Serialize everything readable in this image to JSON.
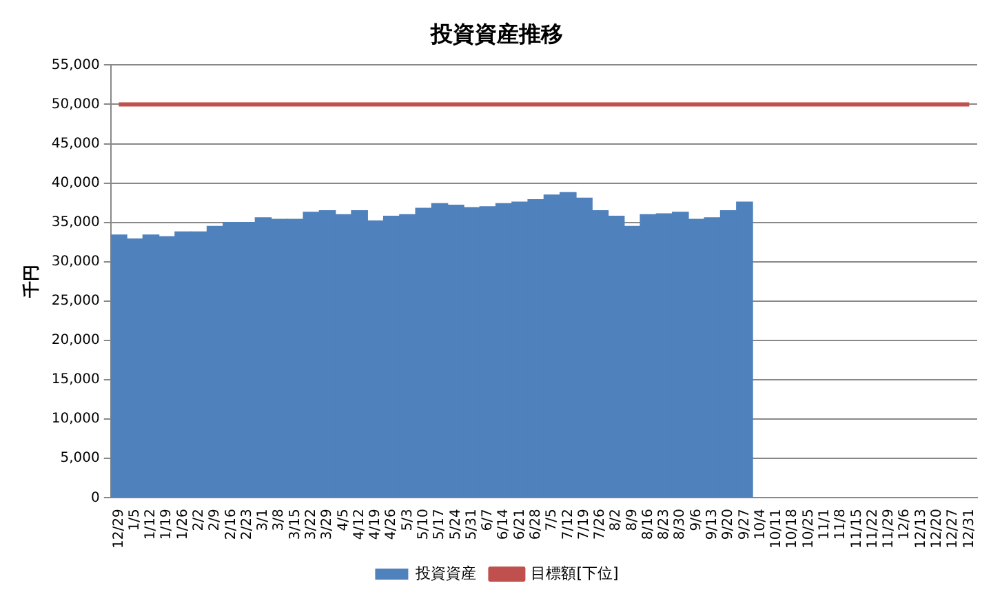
{
  "chart_data": {
    "type": "bar",
    "title": "投資資産推移",
    "ylabel": "千円",
    "categories": [
      "12/29",
      "1/5",
      "1/12",
      "1/19",
      "1/26",
      "2/2",
      "2/9",
      "2/16",
      "2/23",
      "3/1",
      "3/8",
      "3/15",
      "3/22",
      "3/29",
      "4/5",
      "4/12",
      "4/19",
      "4/26",
      "5/3",
      "5/10",
      "5/17",
      "5/24",
      "5/31",
      "6/7",
      "6/14",
      "6/21",
      "6/28",
      "7/5",
      "7/12",
      "7/19",
      "7/26",
      "8/2",
      "8/9",
      "8/16",
      "8/23",
      "8/30",
      "9/6",
      "9/13",
      "9/20",
      "9/27",
      "10/4",
      "10/11",
      "10/18",
      "10/25",
      "11/1",
      "11/8",
      "11/15",
      "11/22",
      "11/29",
      "12/6",
      "12/13",
      "12/20",
      "12/27",
      "12/31"
    ],
    "series": [
      {
        "name": "投資資産",
        "color": "#4f81bd",
        "values": [
          33400,
          32900,
          33400,
          33200,
          33800,
          33800,
          34500,
          35000,
          35000,
          35600,
          35400,
          35400,
          36300,
          36500,
          36000,
          36500,
          35200,
          35800,
          36000,
          36800,
          37400,
          37200,
          36900,
          37000,
          37400,
          37600,
          37900,
          38500,
          38800,
          38100,
          36500,
          35800,
          34500,
          36000,
          36100,
          36300,
          35400,
          35600,
          36500,
          37600,
          null,
          null,
          null,
          null,
          null,
          null,
          null,
          null,
          null,
          null,
          null,
          null,
          null,
          null
        ]
      },
      {
        "name": "目標額[下位]",
        "type": "line",
        "color": "#c0504d",
        "marker": "none",
        "values": [
          50000,
          50000,
          50000,
          50000,
          50000,
          50000,
          50000,
          50000,
          50000,
          50000,
          50000,
          50000,
          50000,
          50000,
          50000,
          50000,
          50000,
          50000,
          50000,
          50000,
          50000,
          50000,
          50000,
          50000,
          50000,
          50000,
          50000,
          50000,
          50000,
          50000,
          50000,
          50000,
          50000,
          50000,
          50000,
          50000,
          50000,
          50000,
          50000,
          50000,
          50000,
          50000,
          50000,
          50000,
          50000,
          50000,
          50000,
          50000,
          50000,
          50000,
          50000,
          50000,
          50000,
          50000
        ]
      }
    ],
    "ylim": [
      0,
      55000
    ],
    "yticks": [
      0,
      {
        "value": 5000,
        "label": "5,000"
      },
      {
        "value": 10000,
        "label": "10,000"
      },
      {
        "value": 15000,
        "label": "15,000"
      },
      {
        "value": 20000,
        "label": "20,000"
      },
      {
        "value": 25000,
        "label": "25,000"
      },
      {
        "value": 30000,
        "label": "30,000"
      },
      {
        "value": 35000,
        "label": "35,000"
      },
      {
        "value": 40000,
        "label": "40,000"
      },
      {
        "value": 45000,
        "label": "45,000"
      },
      {
        "value": 50000,
        "label": "50,000"
      },
      {
        "value": 55000,
        "label": "55,000"
      }
    ],
    "grid": "y",
    "legend": "bottom"
  }
}
